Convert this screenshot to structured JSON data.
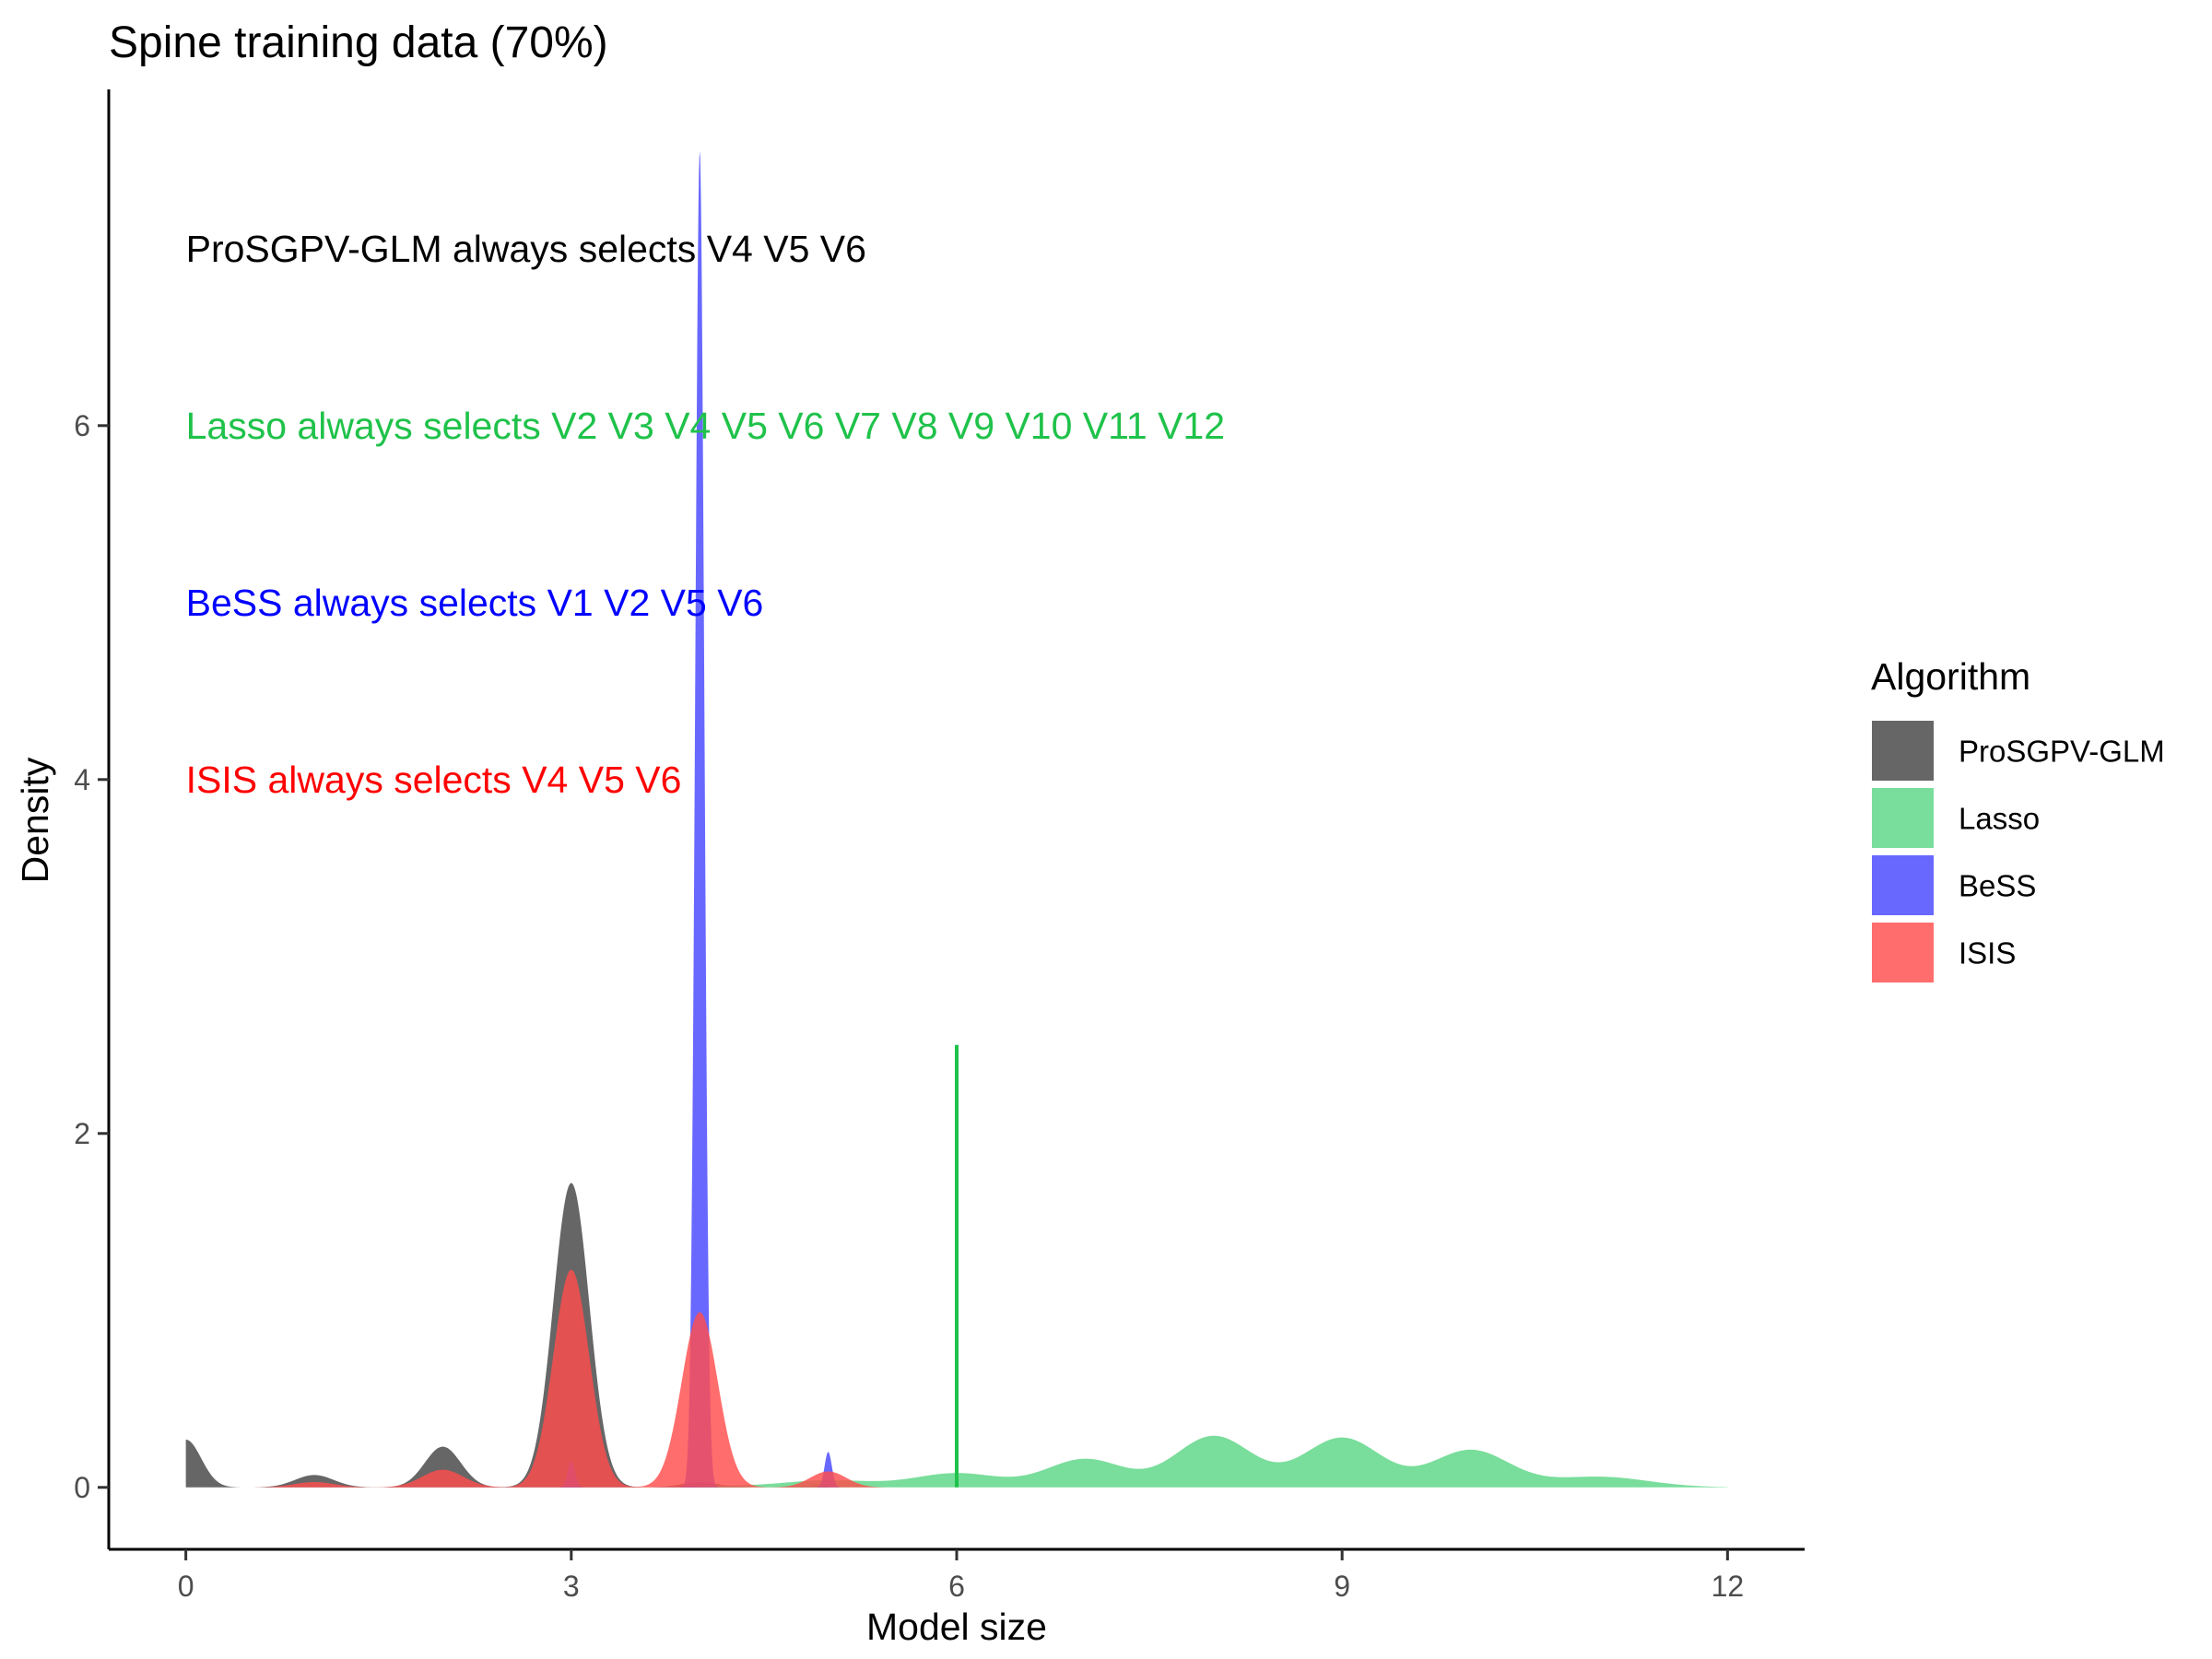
{
  "chart_data": {
    "type": "area",
    "title": "Spine training data (70%)",
    "xlabel": "Model size",
    "ylabel": "Density",
    "xlim": [
      -0.6,
      12.6
    ],
    "ylim": [
      -0.35,
      7.9
    ],
    "x_ticks": [
      0,
      3,
      6,
      9,
      12
    ],
    "y_ticks": [
      0,
      2,
      4,
      6
    ],
    "x_tick_labels": [
      "0",
      "3",
      "6",
      "9",
      "12"
    ],
    "y_tick_labels": [
      "0",
      "2",
      "4",
      "6"
    ],
    "grid": false,
    "legend": {
      "title": "Algorithm",
      "placement": "right",
      "entries": [
        "ProSGPV-GLM",
        "Lasso",
        "BeSS",
        "ISIS"
      ]
    },
    "series": [
      {
        "name": "ProSGPV-GLM",
        "color": "#595959",
        "opacity": 0.92,
        "x_range": [
          0,
          5
        ],
        "peaks": [
          {
            "x": 0,
            "height": 0.27,
            "sd": 0.12
          },
          {
            "x": 1,
            "height": 0.07,
            "sd": 0.15
          },
          {
            "x": 2,
            "height": 0.23,
            "sd": 0.14
          },
          {
            "x": 3,
            "height": 1.72,
            "sd": 0.14
          },
          {
            "x": 4,
            "height": 0.03,
            "sd": 0.14
          },
          {
            "x": 5,
            "height": 0.02,
            "sd": 0.14
          }
        ]
      },
      {
        "name": "Lasso",
        "color": "#5cd685",
        "opacity": 0.82,
        "x_range": [
          4,
          12
        ],
        "peaks": [
          {
            "x": 4,
            "height": 0.01,
            "sd": 0.35
          },
          {
            "x": 5,
            "height": 0.04,
            "sd": 0.35
          },
          {
            "x": 6,
            "height": 0.08,
            "sd": 0.33
          },
          {
            "x": 7,
            "height": 0.16,
            "sd": 0.3
          },
          {
            "x": 8,
            "height": 0.29,
            "sd": 0.3
          },
          {
            "x": 9,
            "height": 0.28,
            "sd": 0.3
          },
          {
            "x": 10,
            "height": 0.21,
            "sd": 0.3
          },
          {
            "x": 11,
            "height": 0.06,
            "sd": 0.38
          }
        ]
      },
      {
        "name": "BeSS",
        "color": "#4d4dff",
        "opacity": 0.85,
        "x_range": [
          2.5,
          5.5
        ],
        "peaks": [
          {
            "x": 3,
            "height": 0.15,
            "sd": 0.028
          },
          {
            "x": 4,
            "height": 7.55,
            "sd": 0.035
          },
          {
            "x": 5,
            "height": 0.2,
            "sd": 0.028
          }
        ]
      },
      {
        "name": "ISIS",
        "color": "#ff4d4d",
        "opacity": 0.82,
        "x_range": [
          0.5,
          5.5
        ],
        "peaks": [
          {
            "x": 1,
            "height": 0.03,
            "sd": 0.16
          },
          {
            "x": 2,
            "height": 0.1,
            "sd": 0.16
          },
          {
            "x": 3,
            "height": 1.23,
            "sd": 0.14
          },
          {
            "x": 4,
            "height": 0.99,
            "sd": 0.14
          },
          {
            "x": 5,
            "height": 0.09,
            "sd": 0.14
          }
        ]
      }
    ],
    "reference_line": {
      "x": 6,
      "y_from": 0,
      "y_to": 2.5,
      "color": "#1fc24a"
    },
    "annotations": [
      {
        "text": "ProSGPV-GLM always selects V4 V5 V6",
        "x": 0,
        "y": 7.0,
        "color": "#000000"
      },
      {
        "text": "Lasso always selects V2 V3 V4 V5 V6 V7 V8 V9 V10 V11 V12",
        "x": 0,
        "y": 6.0,
        "color": "#1fc24a"
      },
      {
        "text": "BeSS always selects V1 V2 V5 V6",
        "x": 0,
        "y": 5.0,
        "color": "#0000ff"
      },
      {
        "text": "ISIS always selects V4 V5 V6",
        "x": 0,
        "y": 4.0,
        "color": "#ff0000"
      }
    ]
  }
}
